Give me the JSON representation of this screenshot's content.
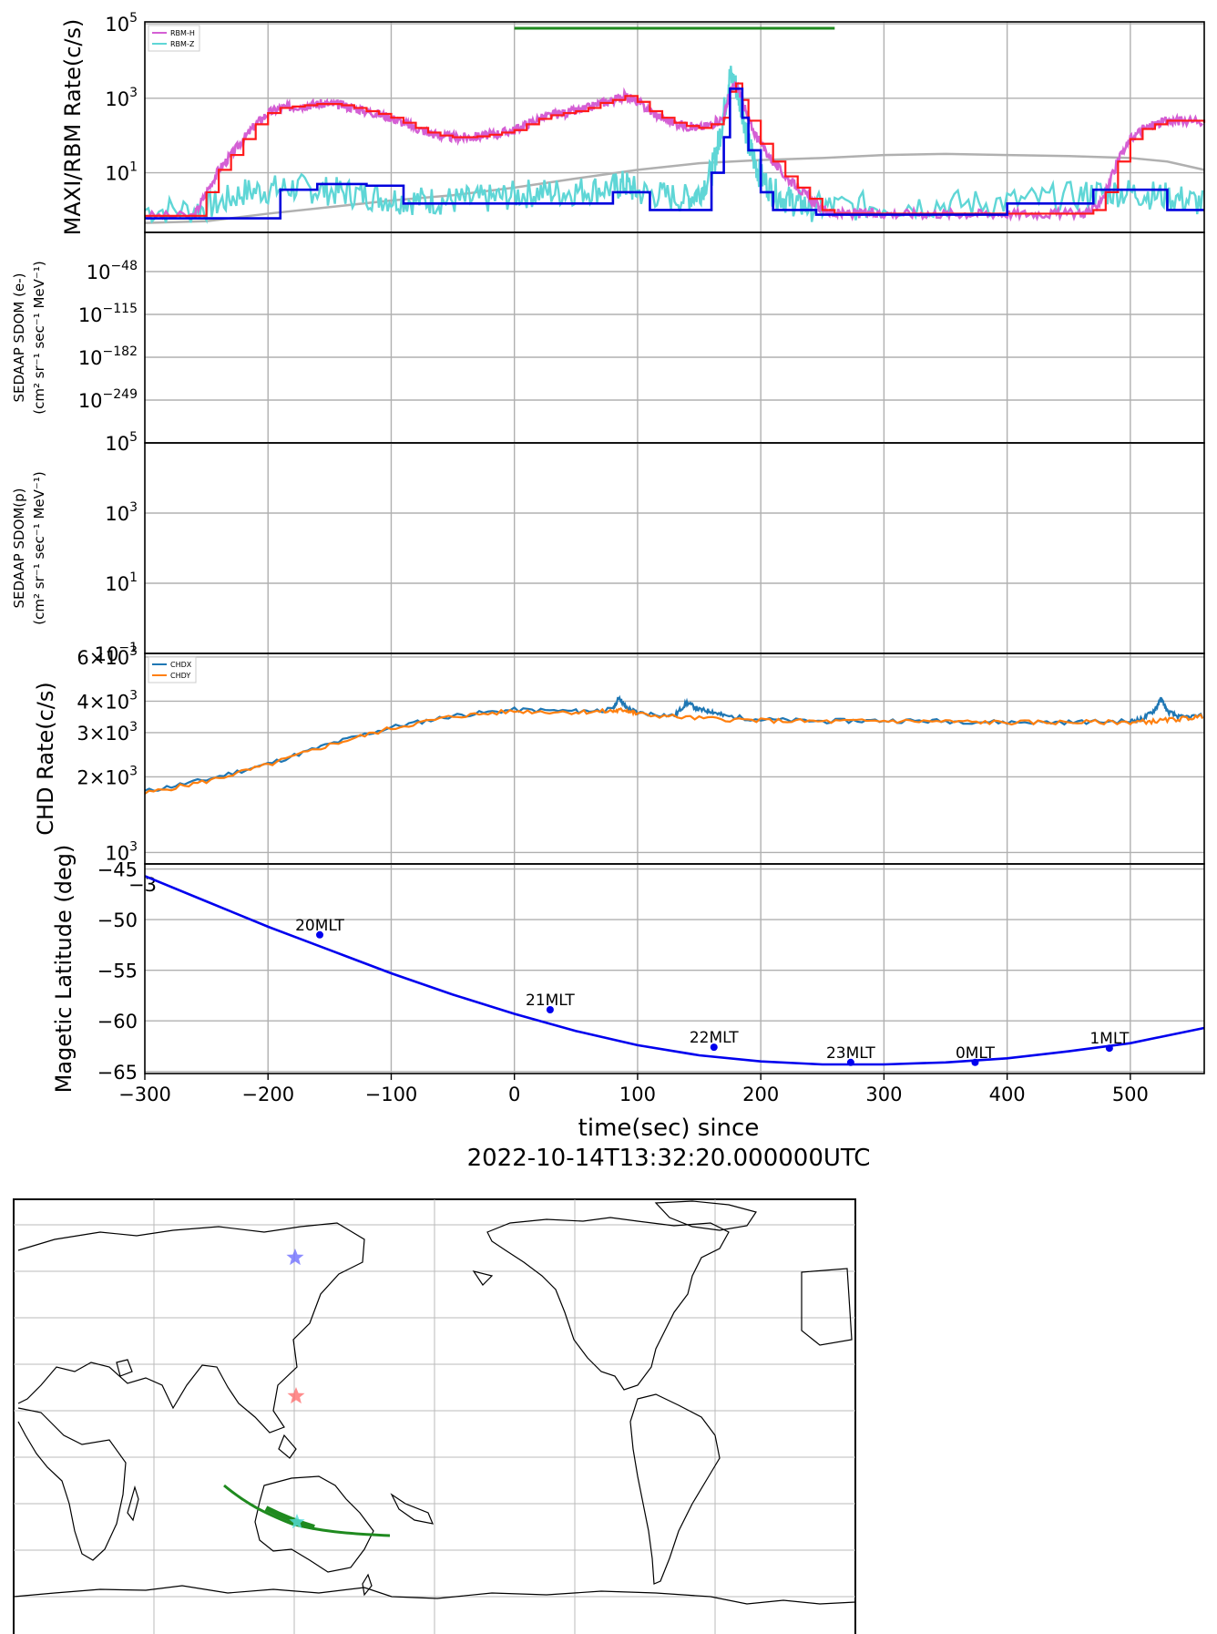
{
  "figure": {
    "xlabel_line1": "time(sec) since",
    "xlabel_line2": "2022-10-14T13:32:20.000000UTC",
    "xlim": [
      -300,
      560
    ],
    "xticks": [
      -300,
      -200,
      -100,
      0,
      100,
      200,
      300,
      400,
      500
    ]
  },
  "chart_data": [
    {
      "type": "line",
      "panel": "rbm",
      "ylabel": "MAXI/RBM Rate(c/s)",
      "yscale": "log",
      "ylim_exp": [
        -0.6,
        5.05
      ],
      "yticks": [
        {
          "base": "10",
          "exp": "5",
          "e": 5
        },
        {
          "base": "10",
          "exp": "3",
          "e": 3
        },
        {
          "base": "10",
          "exp": "1",
          "e": 1
        }
      ],
      "grid": true,
      "legend": "top-left",
      "colors": {
        "rbm_h": "#d45fd4",
        "rbm_z": "#5fd6d6",
        "red": "#ff1a1a",
        "blue": "#0000dd",
        "gray": "#b0b0b0",
        "bar": "#1f8a1f"
      },
      "green_bar_x": [
        0,
        260
      ],
      "series": [
        {
          "name": "RBM-H",
          "x": [
            -300,
            -260,
            -250,
            -240,
            -230,
            -220,
            -210,
            -200,
            -190,
            -180,
            -170,
            -160,
            -150,
            -140,
            -130,
            -120,
            -110,
            -100,
            -90,
            -80,
            -70,
            -60,
            -50,
            -40,
            -30,
            -20,
            -10,
            0,
            10,
            20,
            30,
            40,
            50,
            60,
            70,
            80,
            90,
            100,
            110,
            120,
            130,
            140,
            150,
            160,
            170,
            175,
            180,
            185,
            190,
            200,
            210,
            220,
            230,
            240,
            250,
            260,
            270,
            280,
            290,
            300,
            320,
            340,
            360,
            380,
            400,
            420,
            440,
            460,
            470,
            480,
            490,
            500,
            510,
            520,
            530,
            540,
            560
          ],
          "y": [
            0.7,
            0.7,
            3,
            12,
            30,
            80,
            200,
            400,
            550,
            600,
            650,
            700,
            700,
            650,
            550,
            450,
            380,
            300,
            220,
            160,
            120,
            100,
            90,
            90,
            95,
            105,
            120,
            140,
            200,
            280,
            350,
            400,
            450,
            550,
            750,
            900,
            1150,
            800,
            450,
            300,
            220,
            180,
            160,
            200,
            300,
            1500,
            2500,
            900,
            250,
            60,
            20,
            8,
            4,
            2,
            1,
            0.8,
            0.8,
            0.8,
            0.8,
            0.8,
            0.8,
            0.8,
            0.8,
            0.8,
            0.8,
            0.8,
            0.8,
            0.8,
            1,
            3,
            20,
            80,
            150,
            200,
            250,
            250,
            220
          ]
        },
        {
          "name": "RBM-Z",
          "x": [
            -300,
            -260,
            -240,
            -220,
            -200,
            -180,
            -160,
            -140,
            -120,
            -100,
            -80,
            -60,
            -40,
            -20,
            0,
            20,
            40,
            60,
            80,
            90,
            100,
            120,
            140,
            150,
            160,
            165,
            170,
            175,
            180,
            185,
            190,
            195,
            200,
            210,
            220,
            230,
            240,
            260,
            300,
            340,
            380,
            420,
            460,
            480,
            500,
            520,
            540,
            560
          ],
          "y": [
            1,
            1,
            1.5,
            3,
            3.5,
            4,
            3.5,
            3,
            2.5,
            2,
            1.8,
            1.8,
            1.8,
            2,
            2.5,
            3,
            3,
            3.5,
            4,
            5,
            3,
            2.5,
            2,
            3,
            10,
            50,
            400,
            4000,
            2000,
            500,
            60,
            20,
            8,
            3,
            2,
            1.5,
            1.2,
            1.2,
            1.3,
            1.4,
            1.5,
            1.8,
            2.5,
            3,
            3,
            2.5,
            2,
            1.5
          ]
        },
        {
          "name": "",
          "x": [
            -300,
            -250,
            -200,
            -150,
            -100,
            -50,
            0,
            50,
            100,
            150,
            200,
            250,
            300,
            350,
            400,
            450,
            500,
            530,
            560
          ],
          "y": [
            0.45,
            0.5,
            0.8,
            1.2,
            1.8,
            2.5,
            4,
            7,
            12,
            18,
            22,
            25,
            30,
            32,
            30,
            28,
            25,
            20,
            12
          ]
        },
        {
          "name": "",
          "x": [
            -300,
            -250,
            -220,
            -190,
            -160,
            -120,
            -90,
            -50,
            0,
            40,
            80,
            95,
            110,
            140,
            145,
            160,
            170,
            175,
            185,
            190,
            200,
            205,
            210,
            220,
            230,
            240,
            245,
            260,
            300,
            350,
            400,
            420,
            450,
            470,
            480,
            520,
            530,
            560
          ],
          "y": [
            0.6,
            0.6,
            0.6,
            3.5,
            5,
            4.5,
            1.5,
            1.5,
            1.5,
            1.5,
            3,
            3,
            1,
            1,
            1,
            10,
            90,
            1800,
            300,
            40,
            3,
            3,
            1,
            1,
            1,
            1,
            0.75,
            0.75,
            0.75,
            0.75,
            1.5,
            1.5,
            1.5,
            3.5,
            3.5,
            3.5,
            1,
            1
          ]
        }
      ]
    },
    {
      "type": "line",
      "panel": "sedaap_e",
      "ylabel": "SEDAAP SDOM (e-)",
      "ylabel_units": "(cm² sr⁻¹ sec⁻¹ MeV⁻¹)",
      "yticks": [
        {
          "base": "10",
          "exp": "−48"
        },
        {
          "base": "10",
          "exp": "−115"
        },
        {
          "base": "10",
          "exp": "−182"
        },
        {
          "base": "10",
          "exp": "−249"
        }
      ],
      "grid": true,
      "series": []
    },
    {
      "type": "line",
      "panel": "sedaap_p",
      "ylabel": "SEDAAP SDOM(p)",
      "ylabel_units": "(cm² sr⁻¹ sec⁻¹ MeV⁻¹)",
      "yticks": [
        {
          "base": "10",
          "exp": "5"
        },
        {
          "base": "10",
          "exp": "3"
        },
        {
          "base": "10",
          "exp": "1"
        },
        {
          "base": "10",
          "exp": "−1"
        }
      ],
      "grid": true,
      "series": []
    },
    {
      "type": "line",
      "panel": "chd",
      "ylabel": "CHD Rate(c/s)",
      "yscale": "log",
      "ylim": [
        900,
        6200
      ],
      "yticks": [
        {
          "label": "6×10",
          "exp": "3",
          "v": 6000
        },
        {
          "label": "4×10",
          "exp": "3",
          "v": 4000
        },
        {
          "label": "3×10",
          "exp": "3",
          "v": 3000
        },
        {
          "label": "2×10",
          "exp": "3",
          "v": 2000
        },
        {
          "label": "10",
          "exp": "3",
          "v": 1000
        }
      ],
      "legend": "top-left",
      "grid": true,
      "colors": {
        "chdx": "#1f77b4",
        "chdy": "#ff7f0e"
      },
      "series": [
        {
          "name": "CHDX",
          "x": [
            -300,
            -250,
            -200,
            -150,
            -100,
            -50,
            0,
            50,
            80,
            85,
            90,
            100,
            130,
            140,
            150,
            160,
            170,
            200,
            250,
            300,
            350,
            400,
            450,
            500,
            510,
            520,
            525,
            530,
            540,
            560
          ],
          "y": [
            1750,
            1950,
            2250,
            2700,
            3150,
            3500,
            3700,
            3650,
            3700,
            4150,
            3800,
            3600,
            3500,
            3950,
            3700,
            3650,
            3500,
            3380,
            3330,
            3350,
            3330,
            3300,
            3300,
            3330,
            3400,
            3700,
            4100,
            3650,
            3450,
            3500
          ]
        },
        {
          "name": "CHDY",
          "x": [
            -300,
            -250,
            -200,
            -150,
            -100,
            -50,
            0,
            50,
            80,
            90,
            100,
            150,
            200,
            250,
            300,
            350,
            400,
            450,
            500,
            520,
            540,
            560
          ],
          "y": [
            1720,
            1920,
            2230,
            2680,
            3120,
            3480,
            3650,
            3620,
            3650,
            3700,
            3550,
            3420,
            3350,
            3320,
            3340,
            3320,
            3290,
            3300,
            3300,
            3330,
            3400,
            3480
          ]
        }
      ]
    },
    {
      "type": "line",
      "panel": "maglat",
      "ylabel": "Magetic Latitude  (deg)",
      "ylim": [
        -65.2,
        -44.5
      ],
      "yticks": [
        -45,
        -50,
        -55,
        -60,
        -65
      ],
      "ytick_labels": [
        "−45",
        "−50",
        "−55",
        "−60",
        "−65"
      ],
      "overlap_label": "−3",
      "grid": true,
      "color": "#0000ee",
      "series": [
        {
          "name": "",
          "x": [
            -300,
            -250,
            -200,
            -150,
            -100,
            -50,
            0,
            50,
            100,
            150,
            200,
            250,
            300,
            350,
            400,
            450,
            500,
            560
          ],
          "y": [
            -45.7,
            -48.2,
            -50.7,
            -53.0,
            -55.3,
            -57.4,
            -59.3,
            -61.0,
            -62.4,
            -63.4,
            -64.0,
            -64.3,
            -64.3,
            -64.1,
            -63.7,
            -63.0,
            -62.2,
            -60.7
          ]
        }
      ],
      "mlt_markers": [
        {
          "label": "20MLT",
          "x": -158,
          "y": -51.5
        },
        {
          "label": "21MLT",
          "x": 29,
          "y": -58.9
        },
        {
          "label": "22MLT",
          "x": 162,
          "y": -62.6
        },
        {
          "label": "23MLT",
          "x": 273,
          "y": -64.1
        },
        {
          "label": "0MLT",
          "x": 374,
          "y": -64.1
        },
        {
          "label": "1MLT",
          "x": 483,
          "y": -62.7
        }
      ]
    }
  ]
}
